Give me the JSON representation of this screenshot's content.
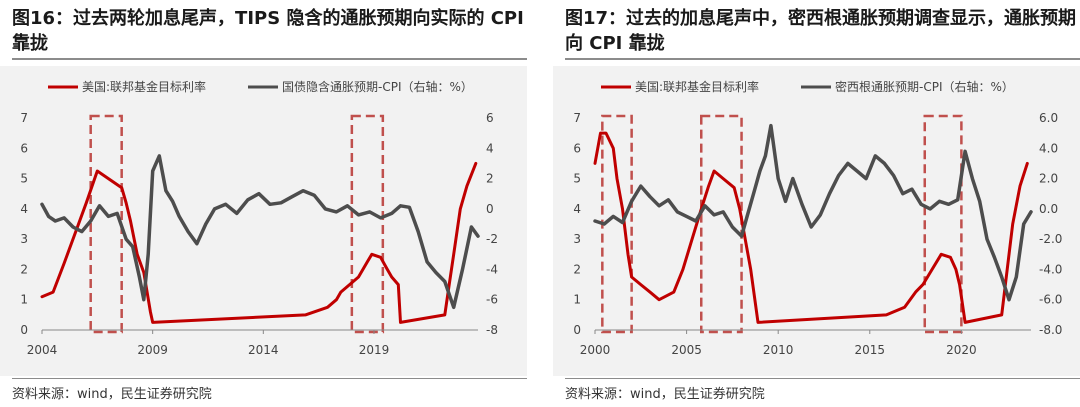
{
  "colors": {
    "fed_funds": "#c00000",
    "inflation": "#4d4d4d",
    "highlight": "#c0504d",
    "plot_bg": "#f2f2f2"
  },
  "panels": [
    {
      "title": "图16：过去两轮加息尾声，TIPS 隐含的通胀预期向实际的 CPI 靠拢",
      "source": "资料来源：wind，民生证券研究院",
      "chart_data": {
        "type": "line",
        "x_axis": {
          "ticks": [
            "2004",
            "2009",
            "2014",
            "2019"
          ],
          "range": [
            2004,
            2023.7
          ]
        },
        "y_left": {
          "ticks": [
            "0",
            "1",
            "2",
            "3",
            "4",
            "5",
            "6",
            "7"
          ],
          "range": [
            0,
            7
          ]
        },
        "y_right": {
          "ticks": [
            "-8",
            "-6",
            "-4",
            "-2",
            "0",
            "2",
            "4",
            "6"
          ],
          "range": [
            -8,
            6
          ]
        },
        "highlight_x_ranges": [
          [
            2006.2,
            2007.6
          ],
          [
            2018.0,
            2019.4
          ]
        ],
        "series": [
          {
            "name": "美国:联邦基金目标利率",
            "axis": "left",
            "x": [
              2004.0,
              2004.5,
              2005.0,
              2005.5,
              2006.0,
              2006.5,
              2007.0,
              2007.6,
              2007.8,
              2008.0,
              2008.3,
              2008.6,
              2008.9,
              2009.0,
              2015.9,
              2016.9,
              2017.3,
              2017.5,
              2017.9,
              2018.3,
              2018.7,
              2018.9,
              2019.3,
              2019.6,
              2019.8,
              2020.1,
              2020.2,
              2022.2,
              2022.4,
              2022.6,
              2022.9,
              2023.2,
              2023.6
            ],
            "y": [
              1.1,
              1.25,
              2.2,
              3.2,
              4.2,
              5.25,
              5.0,
              4.7,
              4.2,
              3.6,
              2.5,
              1.9,
              0.6,
              0.25,
              0.5,
              0.75,
              1.0,
              1.25,
              1.5,
              1.75,
              2.25,
              2.5,
              2.4,
              2.0,
              1.75,
              1.5,
              0.25,
              0.5,
              1.5,
              2.5,
              4.0,
              4.75,
              5.5
            ]
          },
          {
            "name": "国债隐含通胀预期-CPI（右轴：%）",
            "axis": "right",
            "x": [
              2004.0,
              2004.3,
              2004.6,
              2005.0,
              2005.4,
              2005.8,
              2006.2,
              2006.6,
              2007.0,
              2007.4,
              2007.8,
              2008.1,
              2008.4,
              2008.6,
              2008.8,
              2009.0,
              2009.3,
              2009.6,
              2009.9,
              2010.2,
              2010.6,
              2011.0,
              2011.4,
              2011.8,
              2012.3,
              2012.8,
              2013.3,
              2013.8,
              2014.3,
              2014.8,
              2015.3,
              2015.8,
              2016.3,
              2016.8,
              2017.3,
              2017.8,
              2018.3,
              2018.8,
              2019.3,
              2019.8,
              2020.2,
              2020.6,
              2021.0,
              2021.4,
              2021.8,
              2022.2,
              2022.6,
              2023.0,
              2023.4,
              2023.7
            ],
            "y": [
              0.3,
              -0.5,
              -0.8,
              -0.6,
              -1.2,
              -1.5,
              -0.8,
              0.2,
              -0.5,
              -0.3,
              -2.0,
              -2.5,
              -4.5,
              -6.0,
              -3.0,
              2.5,
              3.5,
              1.2,
              0.5,
              -0.5,
              -1.5,
              -2.3,
              -1.0,
              0.0,
              0.3,
              -0.3,
              0.6,
              1.0,
              0.3,
              0.4,
              0.8,
              1.2,
              0.9,
              0.0,
              -0.2,
              0.2,
              -0.4,
              -0.2,
              -0.6,
              -0.3,
              0.2,
              0.1,
              -1.5,
              -3.5,
              -4.2,
              -4.8,
              -6.5,
              -4.0,
              -1.2,
              -1.8
            ]
          }
        ]
      }
    },
    {
      "title": "图17：过去的加息尾声中，密西根通胀预期调查显示，通胀预期向 CPI 靠拢",
      "source": "资料来源：wind，民生证券研究院",
      "chart_data": {
        "type": "line",
        "x_axis": {
          "ticks": [
            "2000",
            "2005",
            "2010",
            "2015",
            "2020"
          ],
          "range": [
            2000,
            2023.8
          ]
        },
        "y_left": {
          "ticks": [
            "0",
            "1",
            "2",
            "3",
            "4",
            "5",
            "6",
            "7"
          ],
          "range": [
            0,
            7
          ]
        },
        "y_right": {
          "ticks": [
            "-8.0",
            "-6.0",
            "-4.0",
            "-2.0",
            "0.0",
            "2.0",
            "4.0",
            "6.0"
          ],
          "range": [
            -8,
            6
          ]
        },
        "highlight_x_ranges": [
          [
            2000.4,
            2002.0
          ],
          [
            2005.8,
            2008.0
          ],
          [
            2018.0,
            2020.0
          ]
        ],
        "series": [
          {
            "name": "美国:联邦基金目标利率",
            "axis": "left",
            "x": [
              2000.0,
              2000.3,
              2000.6,
              2001.0,
              2001.2,
              2001.5,
              2001.8,
              2002.0,
              2002.5,
              2003.0,
              2003.5,
              2004.3,
              2004.8,
              2005.3,
              2005.8,
              2006.2,
              2006.5,
              2007.0,
              2007.6,
              2007.9,
              2008.2,
              2008.5,
              2008.9,
              2015.9,
              2016.9,
              2017.5,
              2017.9,
              2018.4,
              2018.9,
              2019.4,
              2019.7,
              2019.9,
              2020.2,
              2022.2,
              2022.5,
              2022.8,
              2023.2,
              2023.6
            ],
            "y": [
              5.5,
              6.5,
              6.5,
              6.0,
              5.0,
              4.0,
              2.5,
              1.75,
              1.5,
              1.25,
              1.0,
              1.25,
              2.0,
              3.0,
              4.0,
              4.75,
              5.25,
              5.0,
              4.7,
              4.0,
              3.0,
              2.0,
              0.25,
              0.5,
              0.75,
              1.25,
              1.5,
              2.0,
              2.5,
              2.4,
              2.0,
              1.5,
              0.25,
              0.5,
              2.0,
              3.5,
              4.75,
              5.5
            ]
          },
          {
            "name": "密西根通胀预期-CPI（右轴：%）",
            "axis": "right",
            "x": [
              2000.0,
              2000.5,
              2001.0,
              2001.5,
              2002.0,
              2002.5,
              2003.0,
              2003.5,
              2004.0,
              2004.5,
              2005.0,
              2005.5,
              2006.0,
              2006.5,
              2007.0,
              2007.5,
              2008.0,
              2008.3,
              2008.7,
              2009.0,
              2009.3,
              2009.6,
              2010.0,
              2010.4,
              2010.8,
              2011.3,
              2011.8,
              2012.3,
              2012.8,
              2013.3,
              2013.8,
              2014.3,
              2014.8,
              2015.3,
              2015.8,
              2016.3,
              2016.8,
              2017.3,
              2017.8,
              2018.3,
              2018.8,
              2019.3,
              2019.8,
              2020.2,
              2020.6,
              2021.0,
              2021.4,
              2021.8,
              2022.2,
              2022.6,
              2023.0,
              2023.4,
              2023.8
            ],
            "y": [
              -0.8,
              -1.0,
              -0.5,
              -0.9,
              0.5,
              1.5,
              0.8,
              0.2,
              0.6,
              -0.2,
              -0.5,
              -0.8,
              0.2,
              -0.4,
              -0.2,
              -1.2,
              -1.8,
              -0.5,
              1.2,
              2.5,
              3.5,
              5.5,
              2.0,
              0.5,
              2.0,
              0.3,
              -1.2,
              -0.4,
              1.0,
              2.2,
              3.0,
              2.5,
              2.0,
              3.5,
              3.0,
              2.2,
              1.0,
              1.3,
              0.3,
              0.0,
              0.5,
              0.3,
              0.6,
              3.8,
              2.0,
              0.5,
              -2.0,
              -3.2,
              -4.5,
              -6.0,
              -4.5,
              -1.0,
              -0.2
            ]
          }
        ]
      }
    }
  ]
}
